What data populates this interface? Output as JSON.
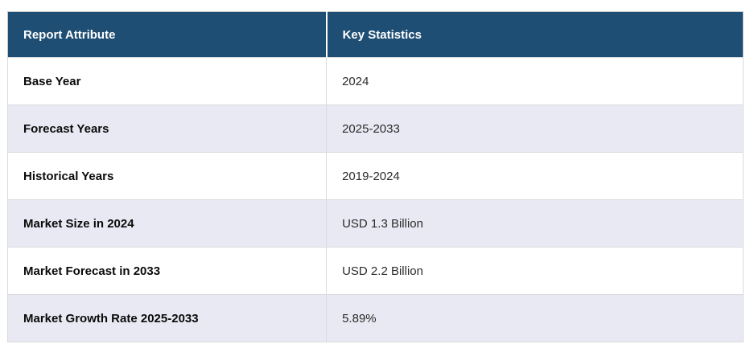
{
  "page": {
    "background_color": "#ffffff"
  },
  "table": {
    "columns": [
      "Report Attribute",
      "Key Statistics"
    ],
    "rows": [
      {
        "attribute": "Base Year",
        "value": "2024"
      },
      {
        "attribute": "Forecast Years",
        "value": "2025-2033"
      },
      {
        "attribute": "Historical Years",
        "value": "2019-2024"
      },
      {
        "attribute": "Market Size in 2024",
        "value": "USD 1.3 Billion"
      },
      {
        "attribute": "Market Forecast in 2033",
        "value": "USD 2.2 Billion"
      },
      {
        "attribute": "Market Growth Rate 2025-2033",
        "value": "5.89%"
      }
    ],
    "colors": {
      "header_background": "#1f4e74",
      "header_text": "#ffffff",
      "row_background": "#ffffff",
      "row_alt_background": "#e8e9f3",
      "attribute_text": "#0a0a0a",
      "value_text": "#2b2b2b",
      "outer_border": "#c8c8c8",
      "cell_border": "#d9dade"
    }
  },
  "chart_data": {
    "type": "table",
    "title": "",
    "columns": [
      "Report Attribute",
      "Key Statistics"
    ],
    "rows": [
      [
        "Base Year",
        "2024"
      ],
      [
        "Forecast Years",
        "2025-2033"
      ],
      [
        "Historical Years",
        "2019-2024"
      ],
      [
        "Market Size in 2024",
        "USD 1.3 Billion"
      ],
      [
        "Market Forecast in 2033",
        "USD 2.2 Billion"
      ],
      [
        "Market Growth Rate 2025-2033",
        "5.89%"
      ]
    ]
  }
}
